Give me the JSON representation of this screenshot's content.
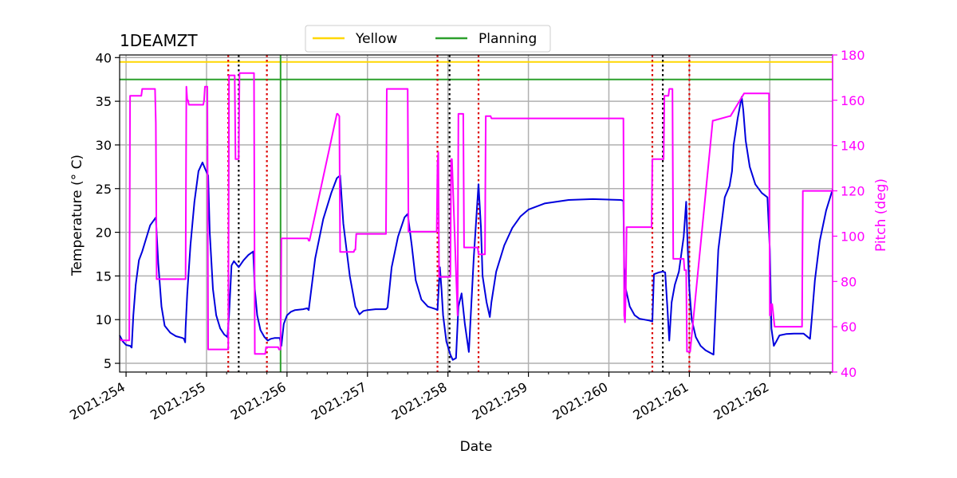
{
  "chart_data": {
    "type": "line",
    "title": "1DEAMZT",
    "xlabel": "Date",
    "ylabel": "Temperature ($^\\circ$C)",
    "ylabel_display": "Temperature (° C)",
    "y2label": "Pitch (deg)",
    "xlim": [
      253.92,
      262.78
    ],
    "ylim": [
      4,
      40.3
    ],
    "y2lim": [
      40,
      180
    ],
    "x_ticks": [
      254,
      255,
      256,
      257,
      258,
      259,
      260,
      261,
      262
    ],
    "x_tick_labels": [
      "2021:254",
      "2021:255",
      "2021:256",
      "2021:257",
      "2021:258",
      "2021:259",
      "2021:260",
      "2021:261",
      "2021:262"
    ],
    "y_ticks": [
      5,
      10,
      15,
      20,
      25,
      30,
      35,
      40
    ],
    "y_tick_labels": [
      "5",
      "10",
      "15",
      "20",
      "25",
      "30",
      "35",
      "40"
    ],
    "y2_ticks": [
      40,
      60,
      80,
      100,
      120,
      140,
      160,
      180
    ],
    "y2_tick_labels": [
      "40",
      "60",
      "80",
      "100",
      "120",
      "140",
      "160",
      "180"
    ],
    "grid": true,
    "legend_placement": "top-center",
    "colors": {
      "temperature": "#0000dd",
      "pitch": "#ff00ff",
      "yellow": "#ffd700",
      "planning": "#2ca02c",
      "red_markers": "#dd0000",
      "black_markers": "#000000",
      "grid": "#b0b0b0"
    },
    "limits": [
      {
        "name": "Yellow",
        "y": 39.5
      },
      {
        "name": "Planning",
        "y": 37.5
      }
    ],
    "green_vertical_x": 255.92,
    "red_dotted_x": [
      255.27,
      255.75,
      257.87,
      258.38,
      260.54,
      261.0
    ],
    "black_dotted_x": [
      255.4,
      258.02,
      260.67
    ],
    "series": [
      {
        "key": "temperature",
        "axis": "left",
        "x": [
          253.92,
          253.96,
          254.0,
          254.05,
          254.07,
          254.09,
          254.12,
          254.16,
          254.2,
          254.24,
          254.3,
          254.37,
          254.4,
          254.44,
          254.48,
          254.55,
          254.62,
          254.7,
          254.72,
          254.735,
          254.74,
          254.76,
          254.8,
          254.85,
          254.9,
          254.95,
          254.98,
          255.02,
          255.04,
          255.08,
          255.12,
          255.17,
          255.22,
          255.26,
          255.28,
          255.31,
          255.34,
          255.4,
          255.46,
          255.52,
          255.58,
          255.6,
          255.63,
          255.67,
          255.72,
          255.76,
          255.8,
          255.85,
          255.91,
          255.93,
          255.96,
          256.0,
          256.05,
          256.1,
          256.2,
          256.25,
          256.27,
          256.35,
          256.45,
          256.55,
          256.62,
          256.66,
          256.7,
          256.78,
          256.85,
          256.9,
          256.95,
          257.0,
          257.1,
          257.23,
          257.25,
          257.3,
          257.38,
          257.46,
          257.5,
          257.55,
          257.6,
          257.67,
          257.75,
          257.85,
          257.87,
          257.9,
          257.92,
          257.94,
          257.98,
          258.03,
          258.06,
          258.1,
          258.13,
          258.17,
          258.21,
          258.26,
          258.32,
          258.38,
          258.41,
          258.43,
          258.48,
          258.52,
          258.54,
          258.6,
          258.7,
          258.8,
          258.9,
          259.0,
          259.2,
          259.5,
          259.8,
          260.15,
          260.18,
          260.19,
          260.21,
          260.26,
          260.32,
          260.38,
          260.44,
          260.5,
          260.54,
          260.56,
          260.62,
          260.67,
          260.7,
          260.73,
          260.75,
          260.78,
          260.82,
          260.87,
          260.93,
          260.96,
          260.98,
          261.0,
          261.03,
          261.08,
          261.14,
          261.2,
          261.26,
          261.3,
          261.36,
          261.44,
          261.5,
          261.53,
          261.55,
          261.6,
          261.65,
          261.67,
          261.7,
          261.75,
          261.82,
          261.9,
          261.97,
          262.0,
          262.02,
          262.05,
          262.08,
          262.12,
          262.2,
          262.3,
          262.42,
          262.5,
          262.52,
          262.56,
          262.62,
          262.7,
          262.78
        ],
        "y": [
          8.2,
          7.5,
          7.1,
          7.0,
          6.8,
          10.5,
          14.0,
          16.8,
          17.8,
          19.0,
          20.8,
          21.7,
          16.5,
          11.5,
          9.3,
          8.5,
          8.1,
          7.9,
          7.8,
          7.4,
          9.0,
          13.0,
          18.5,
          23.5,
          27.0,
          28.0,
          27.3,
          26.5,
          20.0,
          13.5,
          10.5,
          9.0,
          8.3,
          8.0,
          10.5,
          16.2,
          16.7,
          16.0,
          16.8,
          17.4,
          17.8,
          13.5,
          10.5,
          8.8,
          8.0,
          7.6,
          7.8,
          7.9,
          7.9,
          7.0,
          9.5,
          10.5,
          10.9,
          11.1,
          11.2,
          11.3,
          11.1,
          17.0,
          21.5,
          24.5,
          26.2,
          26.5,
          21.0,
          15.0,
          11.5,
          10.6,
          11.0,
          11.1,
          11.2,
          11.2,
          11.4,
          16.0,
          19.5,
          21.7,
          22.1,
          18.5,
          14.5,
          12.3,
          11.5,
          11.2,
          11.1,
          16.0,
          13.5,
          10.5,
          7.5,
          6.0,
          5.4,
          5.6,
          11.5,
          13.0,
          9.5,
          6.3,
          17.0,
          25.5,
          20.5,
          15.0,
          12.0,
          10.3,
          12.0,
          15.5,
          18.5,
          20.5,
          21.8,
          22.6,
          23.3,
          23.7,
          23.8,
          23.7,
          23.6,
          16.0,
          13.5,
          11.5,
          10.5,
          10.1,
          10.0,
          9.9,
          9.8,
          15.2,
          15.4,
          15.5,
          15.4,
          11.0,
          7.6,
          12.0,
          14.0,
          15.5,
          19.5,
          23.5,
          18.0,
          13.5,
          10.0,
          8.0,
          7.0,
          6.5,
          6.2,
          6.0,
          18.0,
          24.0,
          25.3,
          27.0,
          30.0,
          33.0,
          35.5,
          34.0,
          30.5,
          27.5,
          25.5,
          24.5,
          24.0,
          18.0,
          9.0,
          7.0,
          7.5,
          8.2,
          8.35,
          8.4,
          8.4,
          7.8,
          10.0,
          14.5,
          19.0,
          22.5,
          24.9
        ]
      },
      {
        "key": "pitch",
        "axis": "right",
        "x": [
          253.92,
          253.94,
          254.04,
          254.05,
          254.07,
          254.19,
          254.2,
          254.36,
          254.37,
          254.38,
          254.39,
          254.74,
          254.75,
          254.76,
          254.77,
          254.78,
          254.96,
          254.97,
          254.98,
          255.01,
          255.02,
          255.27,
          255.28,
          255.35,
          255.36,
          255.4,
          255.41,
          255.59,
          255.6,
          255.73,
          255.74,
          255.89,
          255.9,
          255.92,
          255.93,
          256.26,
          256.27,
          256.28,
          256.62,
          256.63,
          256.65,
          256.66,
          256.83,
          256.84,
          256.85,
          256.86,
          256.87,
          257.23,
          257.24,
          257.5,
          257.51,
          257.86,
          257.87,
          257.88,
          257.89,
          257.9,
          257.92,
          258.03,
          258.04,
          258.05,
          258.12,
          258.13,
          258.19,
          258.2,
          258.37,
          258.38,
          258.39,
          258.46,
          258.47,
          258.53,
          258.54,
          260.18,
          260.19,
          260.2,
          260.21,
          260.22,
          260.53,
          260.54,
          260.68,
          260.69,
          260.74,
          260.75,
          260.79,
          260.8,
          260.93,
          260.94,
          260.96,
          260.97,
          261.0,
          261.01,
          261.29,
          261.3,
          261.5,
          261.51,
          261.68,
          261.69,
          261.99,
          262.0,
          262.01,
          262.02,
          262.03,
          262.06,
          262.07,
          262.4,
          262.41,
          262.48,
          262.5,
          262.78
        ],
        "y": [
          55,
          54,
          54,
          162,
          162,
          162,
          165,
          165,
          150,
          81,
          81,
          81,
          166,
          160,
          160,
          158,
          158,
          160,
          166,
          166,
          50,
          50,
          171,
          171,
          134,
          134,
          172,
          172,
          48,
          48,
          51,
          51,
          50,
          50,
          99,
          99,
          98,
          98,
          154,
          154,
          153,
          93,
          93,
          94,
          94,
          101,
          101,
          101,
          165,
          165,
          102,
          102,
          132,
          137,
          82,
          82,
          82,
          82,
          134,
          134,
          65,
          154,
          154,
          95,
          95,
          92,
          92,
          92,
          153,
          153,
          152,
          152,
          65,
          62,
          75,
          104,
          104,
          134,
          134,
          162,
          162,
          165,
          165,
          90,
          90,
          85,
          85,
          49,
          49,
          49,
          151,
          151,
          153,
          153,
          163,
          163,
          163,
          65,
          65,
          70,
          70,
          60,
          60,
          60,
          120,
          120,
          120,
          120
        ]
      }
    ]
  }
}
